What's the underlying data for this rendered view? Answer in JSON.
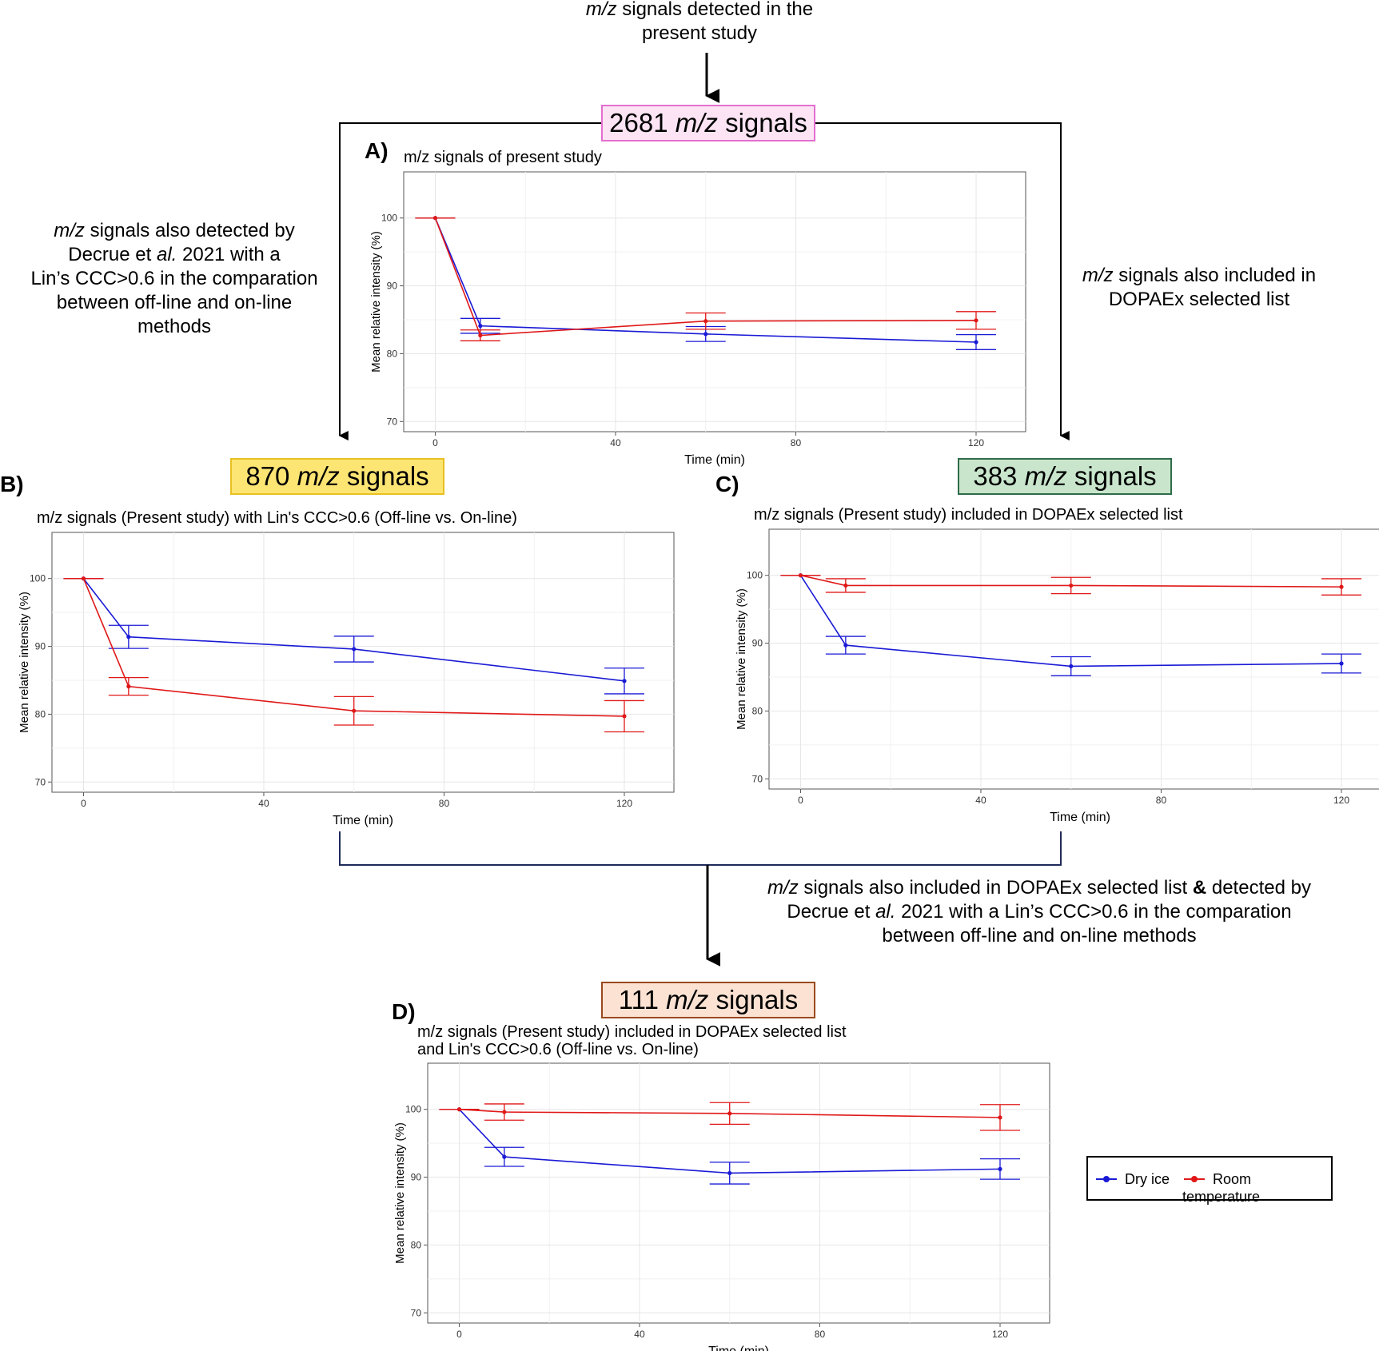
{
  "flow": {
    "top_caption": [
      "signals detected in the",
      "present study"
    ],
    "top_caption_italic": "m/z",
    "left_caption": [
      "signals also detected by",
      "Decrue et ",
      "al.",
      " 2021 with a",
      "Lin’s CCC>0.6 in the comparation",
      "between off-line and on-line",
      "methods"
    ],
    "right_caption": [
      "signals also included in",
      "DOPAEx selected list"
    ],
    "bottom_caption": [
      "signals also included in DOPAEx selected list ",
      "&",
      " detected by",
      "Decrue et ",
      "al.",
      " 2021 with a Lin’s CCC>0.6 in the comparation",
      "between off-line and on-line methods"
    ],
    "italic_mz": "m/z",
    "boxes": [
      {
        "count": "2681",
        "suffix": "signals",
        "bg": "#fce4f4",
        "border": "#e36fd0"
      },
      {
        "count": "870",
        "suffix": "signals",
        "bg": "#fde574",
        "border": "#e8c020"
      },
      {
        "count": "383",
        "suffix": "signals",
        "bg": "#c9e6cd",
        "border": "#2f6b4a"
      },
      {
        "count": "111",
        "suffix": "signals",
        "bg": "#fbe2d3",
        "border": "#9b4a1e"
      }
    ]
  },
  "legend": {
    "items": [
      {
        "name": "Dry ice",
        "color": "#1a1ad6"
      },
      {
        "name": "Room temperature",
        "color": "#e01818"
      }
    ]
  },
  "chart_data": [
    {
      "panel": "A)",
      "type": "line",
      "title": "m/z signals of present study",
      "xlabel": "Time (min)",
      "ylabel": "Mean relative intensity (%)",
      "xticks": [
        "0",
        "40",
        "80",
        "120"
      ],
      "yticks": [
        "70",
        "80",
        "90",
        "100"
      ],
      "xlim": [
        -7,
        131
      ],
      "ylim": [
        68.5,
        106.8
      ],
      "x": [
        0,
        10,
        60,
        120
      ],
      "series": [
        {
          "name": "Dry ice",
          "color": "#1a1ad6",
          "values": [
            100,
            84.1,
            82.9,
            81.7
          ],
          "err": [
            0,
            1.1,
            1.1,
            1.1
          ]
        },
        {
          "name": "Room temperature",
          "color": "#e01818",
          "values": [
            100,
            82.7,
            84.8,
            84.9
          ],
          "err": [
            0,
            0.8,
            1.2,
            1.3
          ]
        }
      ]
    },
    {
      "panel": "B)",
      "type": "line",
      "title": "m/z signals (Present study) with Lin's CCC>0.6 (Off-line vs. On-line)",
      "xlabel": "Time (min)",
      "ylabel": "Mean relative intensity (%)",
      "xticks": [
        "0",
        "40",
        "80",
        "120"
      ],
      "yticks": [
        "70",
        "80",
        "90",
        "100"
      ],
      "xlim": [
        -7,
        131
      ],
      "ylim": [
        68.5,
        106.8
      ],
      "x": [
        0,
        10,
        60,
        120
      ],
      "series": [
        {
          "name": "Dry ice",
          "color": "#1a1ad6",
          "values": [
            100,
            91.4,
            89.6,
            84.9
          ],
          "err": [
            0,
            1.7,
            1.9,
            1.9
          ]
        },
        {
          "name": "Room temperature",
          "color": "#e01818",
          "values": [
            100,
            84.1,
            80.5,
            79.7
          ],
          "err": [
            0,
            1.3,
            2.1,
            2.3
          ]
        }
      ]
    },
    {
      "panel": "C)",
      "type": "line",
      "title": "m/z signals (Present study) included in DOPAEx selected list",
      "xlabel": "Time (min)",
      "ylabel": "Mean relative intensity (%)",
      "xticks": [
        "0",
        "40",
        "80",
        "120"
      ],
      "yticks": [
        "70",
        "80",
        "90",
        "100"
      ],
      "xlim": [
        -7,
        131
      ],
      "ylim": [
        68.5,
        106.8
      ],
      "x": [
        0,
        10,
        60,
        120
      ],
      "series": [
        {
          "name": "Dry ice",
          "color": "#1a1ad6",
          "values": [
            100,
            89.7,
            86.6,
            87.0
          ],
          "err": [
            0,
            1.3,
            1.4,
            1.4
          ]
        },
        {
          "name": "Room temperature",
          "color": "#e01818",
          "values": [
            100,
            98.5,
            98.5,
            98.3
          ],
          "err": [
            0,
            1.0,
            1.2,
            1.2
          ]
        }
      ]
    },
    {
      "panel": "D)",
      "type": "line",
      "title": "m/z signals (Present study) included in DOPAEx selected list",
      "title2": "and Lin's CCC>0.6 (Off-line vs. On-line)",
      "xlabel": "Time (min)",
      "ylabel": "Mean relative intensity (%)",
      "xticks": [
        "0",
        "40",
        "80",
        "120"
      ],
      "yticks": [
        "70",
        "80",
        "90",
        "100"
      ],
      "xlim": [
        -7,
        131
      ],
      "ylim": [
        68.5,
        106.8
      ],
      "x": [
        0,
        10,
        60,
        120
      ],
      "series": [
        {
          "name": "Dry ice",
          "color": "#1a1ad6",
          "values": [
            100,
            93.0,
            90.6,
            91.2
          ],
          "err": [
            0,
            1.4,
            1.6,
            1.5
          ]
        },
        {
          "name": "Room temperature",
          "color": "#e01818",
          "values": [
            100,
            99.6,
            99.4,
            98.8
          ],
          "err": [
            0,
            1.2,
            1.6,
            1.9
          ]
        }
      ]
    }
  ]
}
